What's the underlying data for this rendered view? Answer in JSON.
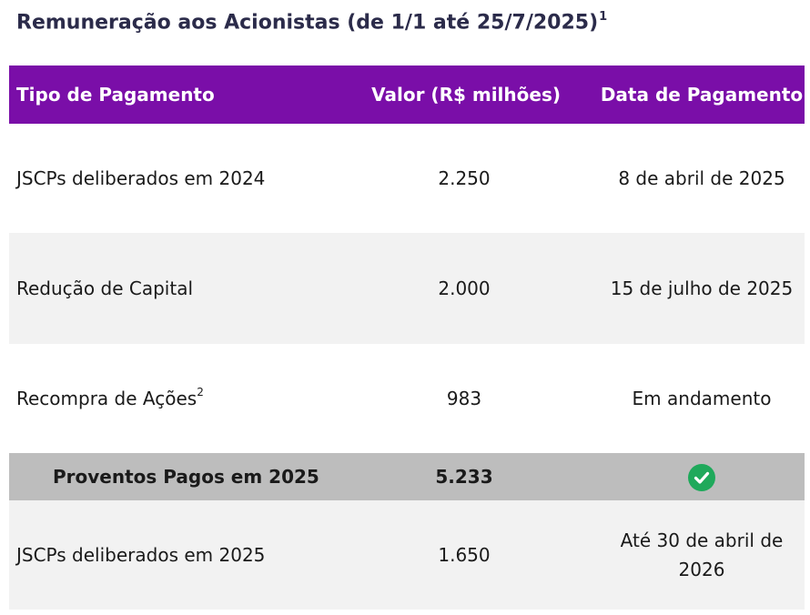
{
  "title": {
    "text": "Remuneração aos Acionistas (de 1/1 até 25/7/2025)",
    "footnote": "1"
  },
  "table": {
    "headers": [
      "Tipo de Pagamento",
      "Valor (R$ milhões)",
      "Data de Pagamento"
    ],
    "rows": [
      {
        "tipo": "JSCPs deliberados em 2024",
        "tipo_note": "",
        "valor": "2.250",
        "data": "8 de abril de 2025"
      },
      {
        "tipo": "Redução de Capital",
        "tipo_note": "",
        "valor": "2.000",
        "data": "15 de julho de 2025"
      },
      {
        "tipo": "Recompra de Ações",
        "tipo_note": "2",
        "valor": "983",
        "data": "Em andamento"
      }
    ],
    "subtotal": {
      "tipo": "Proventos Pagos em 2025",
      "valor": "5.233",
      "status_icon": "check-circle-icon",
      "status_color": "#1fa95b"
    },
    "final_row": {
      "tipo": "JSCPs deliberados em 2025",
      "valor": "1.650",
      "data": "Até 30 de abril de 2026"
    }
  },
  "colors": {
    "header_bg": "#7a0ea8",
    "row_gray": "#f2f2f2",
    "subtotal_bg": "#bdbdbd"
  }
}
